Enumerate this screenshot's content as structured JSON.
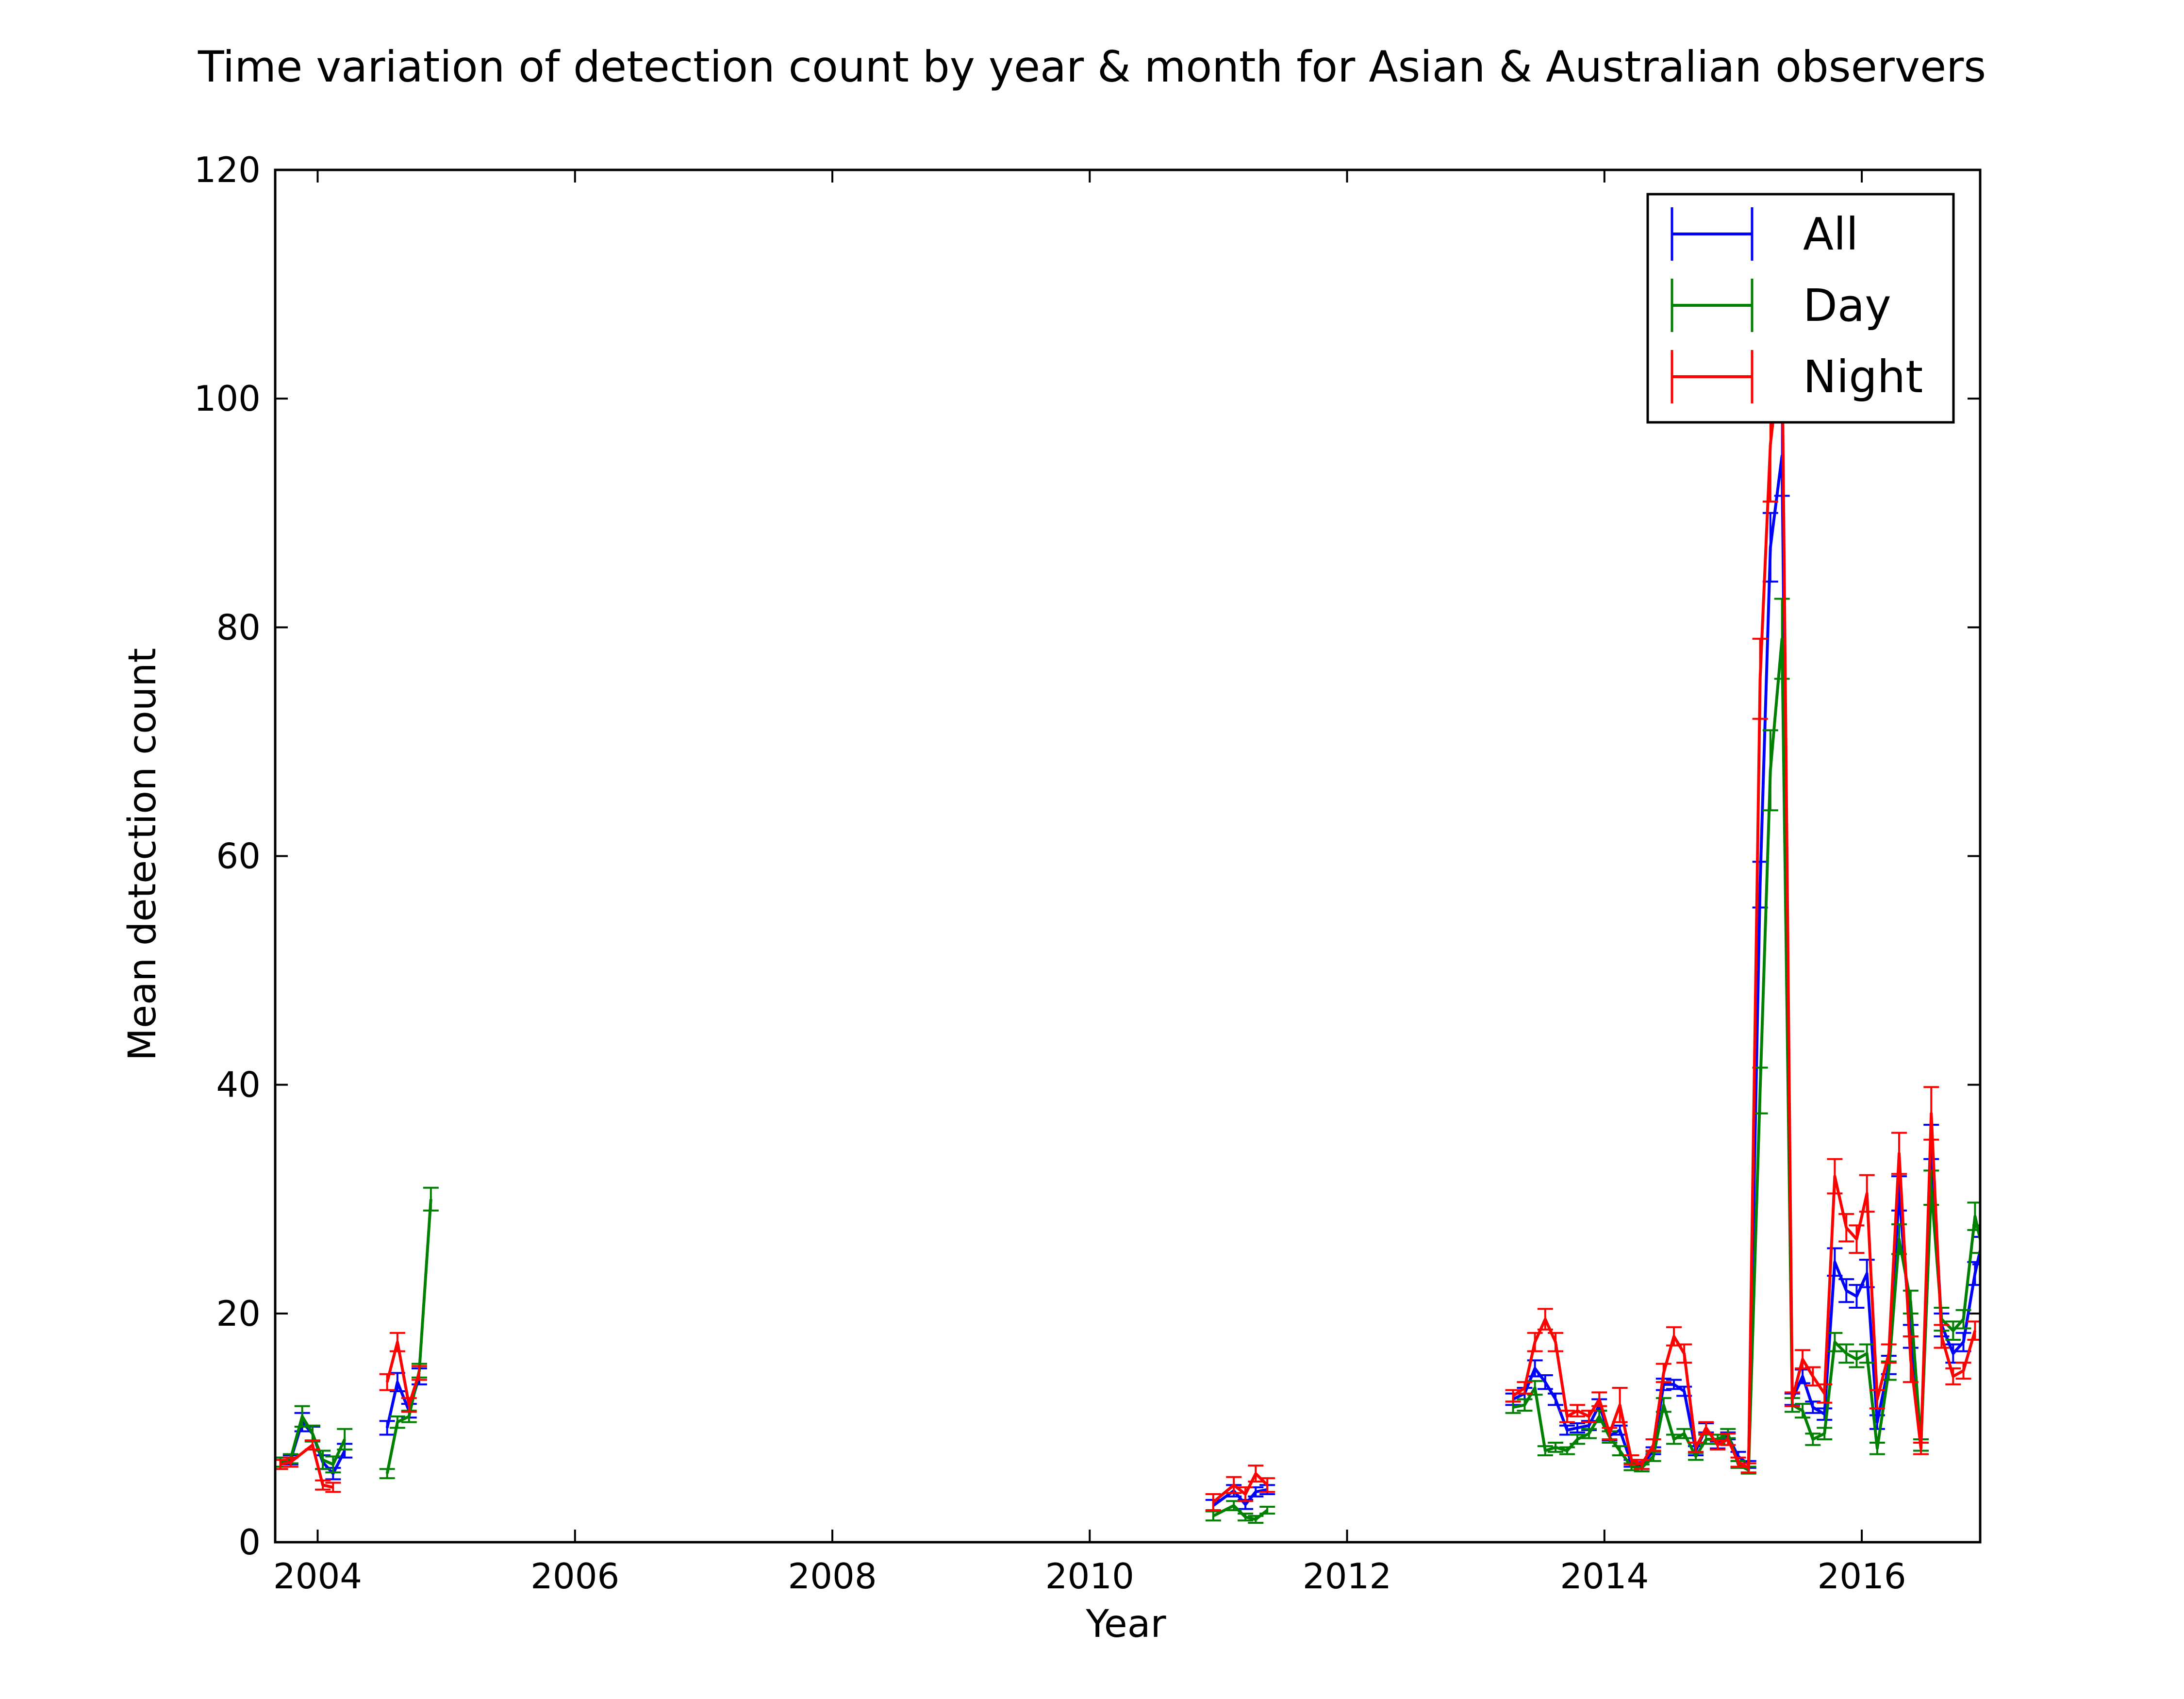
{
  "chart_data": {
    "type": "line",
    "title": "Time variation of detection count by year & month for Asian & Australian observers",
    "xlabel": "Year",
    "ylabel": "Mean detection count",
    "xlim": [
      2003.67,
      2016.92
    ],
    "ylim": [
      0,
      120
    ],
    "xticks": [
      2004,
      2006,
      2008,
      2010,
      2012,
      2014,
      2016
    ],
    "xtick_labels": [
      "2004",
      "2006",
      "2008",
      "2010",
      "2012",
      "2014",
      "2016"
    ],
    "yticks": [
      0,
      20,
      40,
      60,
      80,
      100,
      120
    ],
    "ytick_labels": [
      "0",
      "20",
      "40",
      "60",
      "80",
      "100",
      "120"
    ],
    "grid": false,
    "legend_position": "top-right",
    "error_bars": true,
    "series": [
      {
        "name": "All",
        "color": "#0000ff",
        "segments": [
          [
            [
              2003.71,
              7.0,
              0.4
            ],
            [
              2003.79,
              7.2,
              0.4
            ],
            [
              2003.88,
              10.5,
              0.8
            ],
            [
              2003.96,
              9.5,
              0.6
            ],
            [
              2004.04,
              7.0,
              0.6
            ],
            [
              2004.12,
              6.0,
              0.5
            ],
            [
              2004.21,
              8.0,
              0.6
            ]
          ],
          [
            [
              2004.54,
              10.0,
              0.6
            ],
            [
              2004.62,
              14.0,
              0.8
            ],
            [
              2004.71,
              11.5,
              0.6
            ],
            [
              2004.79,
              14.5,
              0.7
            ]
          ],
          [
            [
              2010.96,
              3.2,
              0.5
            ],
            [
              2011.12,
              4.5,
              0.5
            ],
            [
              2011.21,
              3.3,
              0.4
            ],
            [
              2011.29,
              4.4,
              0.4
            ],
            [
              2011.38,
              4.6,
              0.4
            ]
          ],
          [
            [
              2013.29,
              12.5,
              0.5
            ],
            [
              2013.38,
              13.0,
              0.5
            ],
            [
              2013.46,
              15.2,
              0.7
            ],
            [
              2013.54,
              14.0,
              0.6
            ],
            [
              2013.62,
              12.5,
              0.5
            ],
            [
              2013.71,
              9.8,
              0.4
            ],
            [
              2013.79,
              10.0,
              0.4
            ],
            [
              2013.88,
              10.2,
              0.4
            ],
            [
              2013.96,
              12.0,
              0.5
            ],
            [
              2014.04,
              9.3,
              0.4
            ],
            [
              2014.12,
              9.8,
              0.4
            ],
            [
              2014.21,
              6.9,
              0.3
            ],
            [
              2014.29,
              6.7,
              0.3
            ],
            [
              2014.38,
              8.0,
              0.3
            ],
            [
              2014.46,
              13.8,
              0.5
            ],
            [
              2014.54,
              13.8,
              0.4
            ],
            [
              2014.62,
              13.2,
              0.4
            ],
            [
              2014.71,
              8.0,
              0.4
            ],
            [
              2014.79,
              10.0,
              0.4
            ],
            [
              2014.88,
              8.5,
              0.3
            ],
            [
              2014.96,
              9.3,
              0.3
            ],
            [
              2015.04,
              7.5,
              0.4
            ],
            [
              2015.12,
              6.8,
              0.3
            ],
            [
              2015.21,
              57.5,
              2.0
            ],
            [
              2015.29,
              87.0,
              3.0
            ],
            [
              2015.38,
              95.0,
              3.5
            ],
            [
              2015.46,
              12.5,
              0.5
            ],
            [
              2015.54,
              14.5,
              0.6
            ],
            [
              2015.62,
              11.8,
              0.5
            ],
            [
              2015.71,
              11.2,
              0.5
            ],
            [
              2015.79,
              24.5,
              1.2
            ],
            [
              2015.88,
              22.0,
              1.0
            ],
            [
              2015.96,
              21.5,
              1.0
            ],
            [
              2016.04,
              23.5,
              1.2
            ],
            [
              2016.12,
              10.5,
              0.6
            ],
            [
              2016.21,
              15.5,
              0.8
            ],
            [
              2016.29,
              30.5,
              1.5
            ],
            [
              2016.38,
              18.0,
              1.0
            ],
            [
              2016.46,
              8.5,
              0.5
            ],
            [
              2016.54,
              35.0,
              1.5
            ],
            [
              2016.62,
              19.0,
              1.0
            ],
            [
              2016.71,
              16.5,
              0.8
            ],
            [
              2016.79,
              17.5,
              0.8
            ],
            [
              2016.88,
              23.5,
              1.0
            ],
            [
              2016.92,
              25.5,
              1.2
            ]
          ]
        ]
      },
      {
        "name": "Day",
        "color": "#008000",
        "segments": [
          [
            [
              2003.71,
              7.0,
              0.4
            ],
            [
              2003.79,
              7.3,
              0.4
            ],
            [
              2003.88,
              11.0,
              0.9
            ],
            [
              2003.96,
              9.5,
              0.7
            ],
            [
              2004.04,
              7.2,
              0.8
            ],
            [
              2004.12,
              6.8,
              0.7
            ],
            [
              2004.21,
              9.0,
              0.9
            ]
          ],
          [
            [
              2004.54,
              6.0,
              0.4
            ],
            [
              2004.62,
              10.5,
              0.5
            ],
            [
              2004.71,
              11.0,
              0.5
            ],
            [
              2004.79,
              15.0,
              0.6
            ],
            [
              2004.88,
              30.0,
              1.0
            ]
          ],
          [
            [
              2010.96,
              2.3,
              0.4
            ],
            [
              2011.12,
              3.2,
              0.4
            ],
            [
              2011.21,
              2.2,
              0.3
            ],
            [
              2011.29,
              2.0,
              0.3
            ],
            [
              2011.38,
              2.8,
              0.3
            ]
          ],
          [
            [
              2013.29,
              11.8,
              0.5
            ],
            [
              2013.38,
              12.0,
              0.5
            ],
            [
              2013.46,
              13.5,
              0.6
            ],
            [
              2013.54,
              8.0,
              0.4
            ],
            [
              2013.62,
              8.3,
              0.4
            ],
            [
              2013.71,
              8.0,
              0.3
            ],
            [
              2013.79,
              9.0,
              0.4
            ],
            [
              2013.88,
              9.5,
              0.4
            ],
            [
              2013.96,
              11.0,
              0.5
            ],
            [
              2014.04,
              9.2,
              0.5
            ],
            [
              2014.12,
              8.0,
              0.4
            ],
            [
              2014.21,
              6.6,
              0.3
            ],
            [
              2014.29,
              6.5,
              0.3
            ],
            [
              2014.38,
              7.5,
              0.4
            ],
            [
              2014.46,
              12.0,
              0.6
            ],
            [
              2014.54,
              9.0,
              0.4
            ],
            [
              2014.62,
              9.5,
              0.4
            ],
            [
              2014.71,
              7.5,
              0.3
            ],
            [
              2014.79,
              9.0,
              0.4
            ],
            [
              2014.88,
              9.0,
              0.4
            ],
            [
              2014.96,
              9.5,
              0.4
            ],
            [
              2015.04,
              6.8,
              0.3
            ],
            [
              2015.12,
              6.3,
              0.3
            ],
            [
              2015.21,
              39.5,
              2.0
            ],
            [
              2015.29,
              67.5,
              3.5
            ],
            [
              2015.38,
              79.0,
              3.5
            ],
            [
              2015.46,
              12.0,
              0.6
            ],
            [
              2015.54,
              11.5,
              0.6
            ],
            [
              2015.62,
              9.0,
              0.5
            ],
            [
              2015.71,
              9.5,
              0.5
            ],
            [
              2015.79,
              17.5,
              0.8
            ],
            [
              2015.88,
              16.5,
              0.8
            ],
            [
              2015.96,
              16.0,
              0.7
            ],
            [
              2016.04,
              16.5,
              0.8
            ],
            [
              2016.12,
              8.2,
              0.5
            ],
            [
              2016.21,
              15.0,
              0.8
            ],
            [
              2016.29,
              26.5,
              1.3
            ],
            [
              2016.38,
              21.0,
              1.0
            ],
            [
              2016.46,
              8.5,
              0.5
            ],
            [
              2016.54,
              31.0,
              1.5
            ],
            [
              2016.62,
              19.5,
              1.0
            ],
            [
              2016.71,
              18.5,
              0.8
            ],
            [
              2016.79,
              19.5,
              0.8
            ],
            [
              2016.88,
              28.5,
              1.2
            ],
            [
              2016.92,
              26.5,
              1.2
            ]
          ]
        ]
      },
      {
        "name": "Night",
        "color": "#ff0000",
        "segments": [
          [
            [
              2003.71,
              6.8,
              0.4
            ],
            [
              2003.79,
              7.0,
              0.4
            ],
            [
              2003.96,
              8.5,
              0.4
            ],
            [
              2004.04,
              5.0,
              0.4
            ],
            [
              2004.12,
              4.8,
              0.4
            ]
          ],
          [
            [
              2004.54,
              14.0,
              0.7
            ],
            [
              2004.62,
              17.5,
              0.8
            ],
            [
              2004.71,
              12.0,
              0.6
            ],
            [
              2004.79,
              14.8,
              0.6
            ]
          ],
          [
            [
              2010.96,
              3.5,
              0.7
            ],
            [
              2011.12,
              5.0,
              0.7
            ],
            [
              2011.21,
              4.2,
              0.6
            ],
            [
              2011.29,
              6.0,
              0.7
            ],
            [
              2011.38,
              5.0,
              0.6
            ]
          ],
          [
            [
              2013.29,
              12.8,
              0.5
            ],
            [
              2013.38,
              13.5,
              0.5
            ],
            [
              2013.46,
              17.5,
              0.8
            ],
            [
              2013.54,
              19.5,
              0.9
            ],
            [
              2013.62,
              17.5,
              0.8
            ],
            [
              2013.71,
              11.0,
              0.5
            ],
            [
              2013.79,
              11.5,
              0.5
            ],
            [
              2013.88,
              11.0,
              0.5
            ],
            [
              2013.96,
              12.5,
              0.6
            ],
            [
              2014.04,
              9.5,
              0.5
            ],
            [
              2014.12,
              12.0,
              1.5
            ],
            [
              2014.21,
              7.2,
              0.4
            ],
            [
              2014.29,
              6.8,
              0.4
            ],
            [
              2014.38,
              8.5,
              0.5
            ],
            [
              2014.46,
              14.8,
              0.8
            ],
            [
              2014.54,
              18.0,
              0.8
            ],
            [
              2014.62,
              16.5,
              0.8
            ],
            [
              2014.71,
              8.3,
              0.4
            ],
            [
              2014.79,
              10.0,
              0.5
            ],
            [
              2014.88,
              8.5,
              0.4
            ],
            [
              2014.96,
              9.0,
              0.5
            ],
            [
              2015.04,
              7.0,
              0.4
            ],
            [
              2015.12,
              6.5,
              0.4
            ],
            [
              2015.21,
              75.5,
              3.5
            ],
            [
              2015.29,
              96.0,
              5.0
            ],
            [
              2015.38,
              105.0,
              5.5
            ],
            [
              2015.46,
              12.5,
              0.6
            ],
            [
              2015.54,
              16.0,
              0.8
            ],
            [
              2015.62,
              14.5,
              0.8
            ],
            [
              2015.71,
              13.0,
              0.8
            ],
            [
              2015.79,
              32.0,
              1.5
            ],
            [
              2015.88,
              27.5,
              1.2
            ],
            [
              2015.96,
              26.5,
              1.2
            ],
            [
              2016.04,
              30.5,
              1.6
            ],
            [
              2016.12,
              12.5,
              0.8
            ],
            [
              2016.21,
              16.5,
              0.8
            ],
            [
              2016.29,
              34.0,
              1.8
            ],
            [
              2016.38,
              16.0,
              2.0
            ],
            [
              2016.46,
              8.2,
              0.5
            ],
            [
              2016.54,
              37.5,
              2.3
            ],
            [
              2016.62,
              18.0,
              1.0
            ],
            [
              2016.71,
              14.5,
              0.7
            ],
            [
              2016.79,
              15.0,
              0.7
            ],
            [
              2016.88,
              18.5,
              0.8
            ]
          ]
        ]
      }
    ]
  }
}
